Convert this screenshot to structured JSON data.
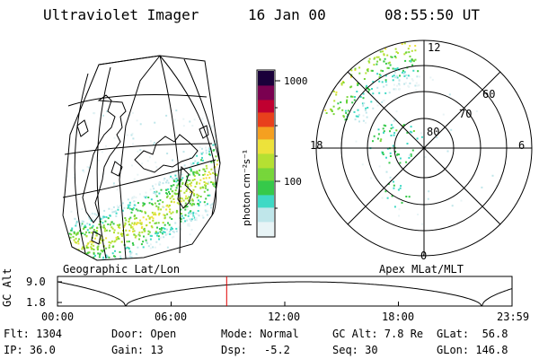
{
  "header": {
    "title": "Ultraviolet Imager",
    "date": "16 Jan 00",
    "time": "08:55:50 UT"
  },
  "maps": {
    "left_caption": "Geographic Lat/Lon",
    "right_caption": "Apex MLat/MLT"
  },
  "colorbar": {
    "unit_label": "photon cm⁻²s⁻¹",
    "ticks": [
      "1000",
      "100"
    ]
  },
  "polar_grid": {
    "lat_labels": [
      "80",
      "70",
      "60"
    ],
    "mlt_labels": {
      "top": "12",
      "left": "18",
      "right": "6",
      "bottom": "0"
    }
  },
  "alt_plot": {
    "ylabel": "GC Alt",
    "yticks": [
      "9.0",
      "1.8"
    ],
    "xticks": [
      "00:00",
      "06:00",
      "12:00",
      "18:00",
      "23:59"
    ],
    "cursor_time_hours": 8.93
  },
  "info": {
    "flt": "Flt: 1304",
    "ip": "IP: 36.0",
    "door": "Door: Open",
    "gain": "Gain: 13",
    "mode": "Mode: Normal",
    "dsp_label": "Dsp:",
    "dsp_value": "-5.2",
    "gc_alt": "GC Alt: 7.8 Re",
    "seq": "Seq: 30",
    "glat": "GLat:  56.8",
    "glon": "GLon: 146.8"
  },
  "colors": {
    "cursor": "#e00000",
    "aurora_scale": [
      "#e8f4f6",
      "#bfe6ea",
      "#3fd9c5",
      "#36c94a",
      "#77d63a",
      "#b5e032",
      "#ede23b",
      "#f5a020",
      "#e8401c",
      "#c00030",
      "#7a0050",
      "#1a003a"
    ]
  }
}
